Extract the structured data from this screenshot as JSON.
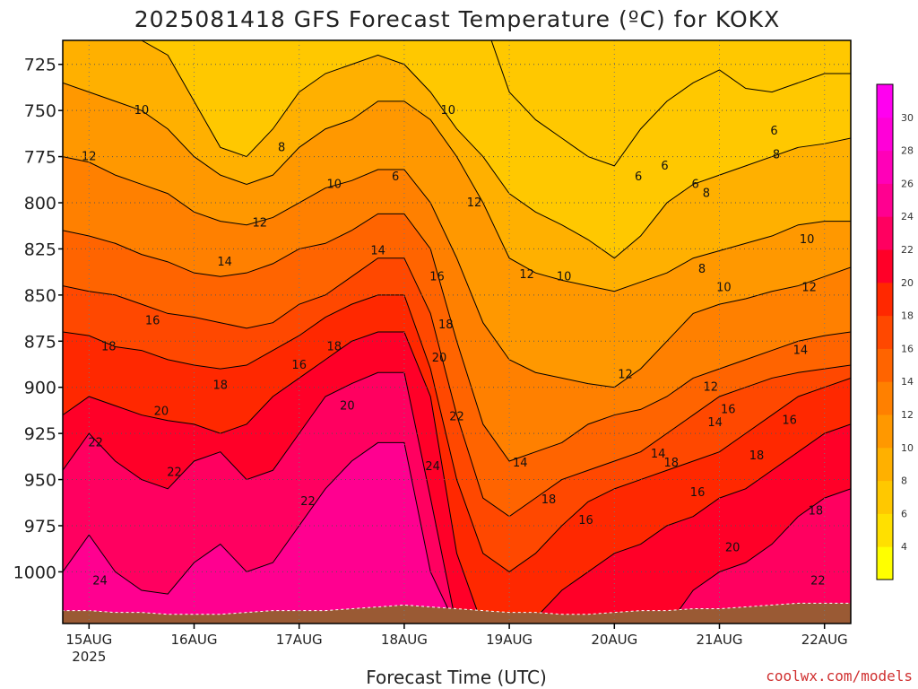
{
  "chart_data": {
    "type": "contour",
    "title": "2025081418 GFS Forecast Temperature (ºC) for KOKX",
    "xlabel": "Forecast Time (UTC)",
    "ylabel": "",
    "credit": "coolwx.com/models",
    "y_axis": {
      "scale": "pressure (hPa), increasing downward",
      "ticks": [
        725,
        750,
        775,
        800,
        825,
        850,
        875,
        900,
        925,
        950,
        975,
        1000
      ],
      "range": [
        712,
        1028
      ]
    },
    "x_axis": {
      "ticks": [
        {
          "label": "15AUG",
          "sublabel": "2025",
          "hours": 0
        },
        {
          "label": "16AUG",
          "hours": 24
        },
        {
          "label": "17AUG",
          "hours": 48
        },
        {
          "label": "18AUG",
          "hours": 72
        },
        {
          "label": "19AUG",
          "hours": 96
        },
        {
          "label": "20AUG",
          "hours": 120
        },
        {
          "label": "21AUG",
          "hours": 144
        },
        {
          "label": "22AUG",
          "hours": 168
        }
      ],
      "range_hours": [
        -6,
        174
      ]
    },
    "colorbar": {
      "levels": [
        4,
        6,
        8,
        10,
        12,
        14,
        16,
        18,
        20,
        22,
        24,
        26,
        28,
        30
      ],
      "colors": [
        "#ffff00",
        "#ffe000",
        "#ffc800",
        "#ffb000",
        "#ff9800",
        "#ff8000",
        "#ff6400",
        "#ff4800",
        "#ff2800",
        "#ff0028",
        "#ff0060",
        "#ff0090",
        "#ff00b8",
        "#ff00d8",
        "#ff00f0"
      ]
    },
    "surface_color": "#9a5a34",
    "grid": true,
    "times_hours": [
      -6,
      0,
      6,
      12,
      18,
      24,
      30,
      36,
      42,
      48,
      54,
      60,
      66,
      72,
      78,
      84,
      90,
      96,
      102,
      108,
      114,
      120,
      126,
      132,
      138,
      144,
      150,
      156,
      162,
      168,
      174
    ],
    "surface_pressure": [
      1021,
      1021,
      1022,
      1022,
      1023,
      1023,
      1023,
      1022,
      1021,
      1021,
      1021,
      1020,
      1019,
      1018,
      1019,
      1020,
      1021,
      1022,
      1022,
      1023,
      1023,
      1022,
      1021,
      1021,
      1020,
      1020,
      1019,
      1018,
      1017,
      1017,
      1017
    ],
    "isotherms": [
      {
        "level": 6,
        "p": [
          699,
          699,
          699,
          699,
          699,
          699,
          699,
          699,
          699,
          699,
          699,
          699,
          699,
          699,
          699,
          699,
          699,
          740,
          755,
          765,
          775,
          780,
          760,
          745,
          735,
          728,
          738,
          740,
          735,
          730,
          730
        ]
      },
      {
        "level": 8,
        "p": [
          699,
          699,
          710,
          712,
          720,
          745,
          770,
          775,
          760,
          740,
          730,
          725,
          720,
          725,
          740,
          760,
          775,
          795,
          805,
          812,
          820,
          830,
          818,
          800,
          790,
          785,
          780,
          775,
          770,
          768,
          765
        ]
      },
      {
        "level": 10,
        "p": [
          735,
          740,
          745,
          750,
          760,
          775,
          785,
          790,
          785,
          770,
          760,
          755,
          745,
          745,
          755,
          775,
          800,
          830,
          838,
          842,
          845,
          848,
          843,
          838,
          830,
          826,
          822,
          818,
          812,
          810,
          810
        ]
      },
      {
        "level": 12,
        "p": [
          775,
          778,
          785,
          790,
          795,
          805,
          810,
          812,
          808,
          800,
          792,
          788,
          782,
          782,
          800,
          830,
          865,
          885,
          892,
          895,
          898,
          900,
          890,
          875,
          860,
          855,
          852,
          848,
          845,
          840,
          835
        ]
      },
      {
        "level": 14,
        "p": [
          815,
          818,
          822,
          828,
          832,
          838,
          840,
          838,
          833,
          825,
          822,
          815,
          806,
          806,
          825,
          875,
          920,
          940,
          935,
          930,
          920,
          915,
          912,
          905,
          895,
          890,
          885,
          880,
          875,
          872,
          870
        ]
      },
      {
        "level": 16,
        "p": [
          845,
          848,
          850,
          855,
          860,
          862,
          865,
          868,
          865,
          855,
          850,
          840,
          830,
          830,
          860,
          915,
          960,
          970,
          960,
          950,
          945,
          940,
          935,
          925,
          915,
          905,
          900,
          895,
          892,
          890,
          888
        ]
      },
      {
        "level": 18,
        "p": [
          870,
          872,
          878,
          880,
          885,
          888,
          890,
          888,
          880,
          872,
          862,
          855,
          850,
          850,
          890,
          950,
          990,
          1000,
          990,
          975,
          962,
          955,
          950,
          945,
          940,
          935,
          925,
          915,
          905,
          900,
          895
        ]
      },
      {
        "level": 20,
        "p": [
          915,
          905,
          910,
          915,
          918,
          920,
          925,
          920,
          905,
          895,
          885,
          875,
          870,
          870,
          905,
          990,
          1030,
          1030,
          1025,
          1010,
          1000,
          990,
          985,
          975,
          970,
          960,
          955,
          945,
          935,
          925,
          920
        ]
      },
      {
        "level": 22,
        "p": [
          945,
          925,
          940,
          950,
          955,
          940,
          935,
          950,
          945,
          925,
          905,
          898,
          892,
          892,
          960,
          1030,
          1030,
          1030,
          1030,
          1030,
          1030,
          1030,
          1030,
          1030,
          1010,
          1000,
          995,
          985,
          970,
          960,
          955
        ]
      },
      {
        "level": 24,
        "p": [
          1000,
          980,
          1000,
          1010,
          1012,
          995,
          985,
          1000,
          995,
          975,
          955,
          940,
          930,
          930,
          1000,
          1030,
          1030,
          1030,
          1030,
          1030,
          1030,
          1030,
          1030,
          1030,
          1030,
          1030,
          1030,
          1030,
          1030,
          1030,
          1030
        ]
      }
    ],
    "contour_labels": [
      {
        "text": "6",
        "hours": 70.0,
        "p": 786
      },
      {
        "text": "6",
        "hours": 125.5,
        "p": 786
      },
      {
        "text": "6",
        "hours": 131.5,
        "p": 780
      },
      {
        "text": "6",
        "hours": 156.5,
        "p": 761
      },
      {
        "text": "6",
        "hours": 138.5,
        "p": 790
      },
      {
        "text": "8",
        "hours": 44.0,
        "p": 770
      },
      {
        "text": "8",
        "hours": 141.0,
        "p": 795
      },
      {
        "text": "8",
        "hours": 140.0,
        "p": 836
      },
      {
        "text": "8",
        "hours": 157.0,
        "p": 774
      },
      {
        "text": "10",
        "hours": 12.0,
        "p": 750
      },
      {
        "text": "10",
        "hours": 82.0,
        "p": 750
      },
      {
        "text": "10",
        "hours": 56.0,
        "p": 790
      },
      {
        "text": "10",
        "hours": 108.5,
        "p": 840
      },
      {
        "text": "10",
        "hours": 145.0,
        "p": 846
      },
      {
        "text": "10",
        "hours": 164.0,
        "p": 820
      },
      {
        "text": "12",
        "hours": 0.0,
        "p": 775
      },
      {
        "text": "12",
        "hours": 39.0,
        "p": 811
      },
      {
        "text": "12",
        "hours": 88.0,
        "p": 800
      },
      {
        "text": "12",
        "hours": 100.0,
        "p": 839
      },
      {
        "text": "12",
        "hours": 122.5,
        "p": 893
      },
      {
        "text": "12",
        "hours": 142.0,
        "p": 900
      },
      {
        "text": "12",
        "hours": 164.5,
        "p": 846
      },
      {
        "text": "14",
        "hours": 31.0,
        "p": 832
      },
      {
        "text": "14",
        "hours": 66.0,
        "p": 826
      },
      {
        "text": "14",
        "hours": 98.5,
        "p": 941
      },
      {
        "text": "14",
        "hours": 130.0,
        "p": 936
      },
      {
        "text": "14",
        "hours": 143.0,
        "p": 919
      },
      {
        "text": "14",
        "hours": 162.5,
        "p": 880
      },
      {
        "text": "16",
        "hours": 14.5,
        "p": 864
      },
      {
        "text": "16",
        "hours": 48.0,
        "p": 888
      },
      {
        "text": "16",
        "hours": 79.5,
        "p": 840
      },
      {
        "text": "16",
        "hours": 113.5,
        "p": 972
      },
      {
        "text": "16",
        "hours": 139.0,
        "p": 957
      },
      {
        "text": "16",
        "hours": 146.0,
        "p": 912
      },
      {
        "text": "16",
        "hours": 160.0,
        "p": 918
      },
      {
        "text": "18",
        "hours": 4.5,
        "p": 878
      },
      {
        "text": "18",
        "hours": 30.0,
        "p": 899
      },
      {
        "text": "18",
        "hours": 56.0,
        "p": 878
      },
      {
        "text": "18",
        "hours": 81.5,
        "p": 866
      },
      {
        "text": "18",
        "hours": 105.0,
        "p": 961
      },
      {
        "text": "18",
        "hours": 133.0,
        "p": 941
      },
      {
        "text": "18",
        "hours": 152.5,
        "p": 937
      },
      {
        "text": "18",
        "hours": 166.0,
        "p": 967
      },
      {
        "text": "20",
        "hours": 16.5,
        "p": 913
      },
      {
        "text": "20",
        "hours": 59.0,
        "p": 910
      },
      {
        "text": "20",
        "hours": 80.0,
        "p": 884
      },
      {
        "text": "20",
        "hours": 147.0,
        "p": 987
      },
      {
        "text": "22",
        "hours": 1.5,
        "p": 930
      },
      {
        "text": "22",
        "hours": 19.5,
        "p": 946
      },
      {
        "text": "22",
        "hours": 50.0,
        "p": 962
      },
      {
        "text": "22",
        "hours": 84.0,
        "p": 916
      },
      {
        "text": "22",
        "hours": 166.5,
        "p": 1005
      },
      {
        "text": "24",
        "hours": 2.5,
        "p": 1005
      },
      {
        "text": "24",
        "hours": 78.5,
        "p": 943
      }
    ]
  }
}
